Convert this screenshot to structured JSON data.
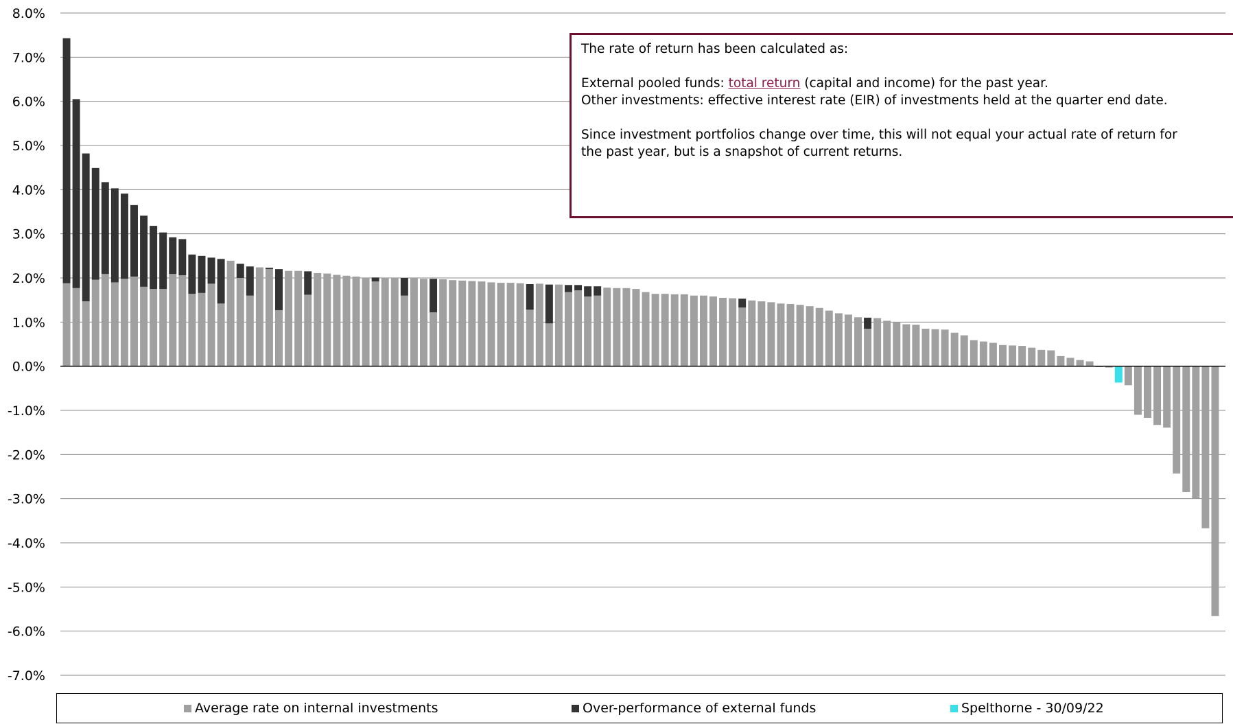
{
  "chart_data": {
    "type": "bar",
    "stacked": true,
    "ylim": [
      -7.0,
      8.0
    ],
    "yticks": [
      "8.0%",
      "7.0%",
      "6.0%",
      "5.0%",
      "4.0%",
      "3.0%",
      "2.0%",
      "1.0%",
      "0.0%",
      "-1.0%",
      "-2.0%",
      "-3.0%",
      "-4.0%",
      "-5.0%",
      "-6.0%",
      "-7.0%"
    ],
    "grid": true,
    "legend_position": "bottom",
    "series": [
      {
        "name": "Average rate on internal investments",
        "color": "#a0a0a0",
        "values": [
          1.88,
          1.77,
          1.47,
          1.96,
          2.09,
          1.9,
          1.98,
          2.03,
          1.8,
          1.75,
          1.75,
          2.09,
          2.06,
          1.64,
          1.66,
          1.87,
          1.42,
          2.39,
          2.0,
          1.6,
          2.24,
          2.2,
          1.27,
          2.16,
          2.16,
          1.62,
          2.11,
          2.1,
          2.07,
          2.05,
          2.03,
          2.01,
          1.92,
          2.0,
          2.0,
          1.6,
          1.99,
          1.98,
          1.22,
          1.97,
          1.95,
          1.94,
          1.93,
          1.92,
          1.9,
          1.89,
          1.89,
          1.88,
          1.28,
          1.87,
          0.97,
          1.85,
          1.68,
          1.72,
          1.58,
          1.6,
          1.78,
          1.77,
          1.77,
          1.75,
          1.68,
          1.64,
          1.64,
          1.63,
          1.63,
          1.6,
          1.6,
          1.58,
          1.55,
          1.54,
          1.33,
          1.49,
          1.47,
          1.45,
          1.42,
          1.41,
          1.39,
          1.36,
          1.32,
          1.26,
          1.2,
          1.17,
          1.11,
          0.85,
          1.09,
          1.03,
          0.99,
          0.95,
          0.94,
          0.85,
          0.84,
          0.83,
          0.76,
          0.7,
          0.59,
          0.56,
          0.53,
          0.48,
          0.47,
          0.46,
          0.42,
          0.37,
          0.36,
          0.23,
          0.19,
          0.14,
          0.11,
          -0.02,
          -0.03,
          0.0,
          -0.43,
          -1.1,
          -1.17,
          -1.33,
          -1.39,
          -2.43,
          -2.85,
          -3.0,
          -3.67,
          -5.66
        ]
      },
      {
        "name": "Over-performance of external funds",
        "color": "#333333",
        "values": [
          5.55,
          4.28,
          3.35,
          2.53,
          2.08,
          2.13,
          1.93,
          1.62,
          1.61,
          1.43,
          1.28,
          0.83,
          0.82,
          0.89,
          0.84,
          0.59,
          1.01,
          0,
          0.32,
          0.66,
          0,
          0.03,
          0.93,
          0,
          0,
          0.53,
          0,
          0,
          0,
          0,
          0,
          0,
          0.09,
          0,
          0,
          0.4,
          0,
          0,
          0.76,
          0,
          0,
          0,
          0,
          0,
          0,
          0,
          0,
          0,
          0.58,
          0,
          0.88,
          0,
          0.16,
          0.12,
          0.23,
          0.21,
          0,
          0,
          0,
          0,
          0,
          0,
          0,
          0,
          0,
          0,
          0,
          0,
          0,
          0,
          0.2,
          0,
          0,
          0,
          0,
          0,
          0,
          0,
          0,
          0,
          0,
          0,
          0,
          0.25,
          0,
          0,
          0,
          0,
          0,
          0,
          0,
          0,
          0,
          0,
          0,
          0,
          0,
          0,
          0,
          0,
          0,
          0,
          0,
          0,
          0,
          0,
          0,
          0,
          0,
          0,
          0,
          0,
          0,
          0,
          0,
          0,
          0,
          0,
          0,
          0
        ]
      },
      {
        "name": "Spelthorne - 30/09/22",
        "color": "#39e0ea",
        "highlight_index": 109,
        "value": -0.37
      }
    ]
  },
  "note": {
    "line1": "The rate of return has been calculated as:",
    "line2_prefix": "External pooled funds: ",
    "line2_link": "total return",
    "line2_suffix": " (capital and income) for the past year.",
    "line3": "Other investments: effective interest rate (EIR) of investments held at the quarter end date.",
    "line4": "Since investment portfolios change over time, this will not equal your actual rate of return for",
    "line5": "the past year, but is a snapshot of current returns."
  },
  "legend": {
    "item1": "Average rate on internal investments",
    "item2": "Over-performance of external funds",
    "item3": "Spelthorne - 30/09/22"
  }
}
